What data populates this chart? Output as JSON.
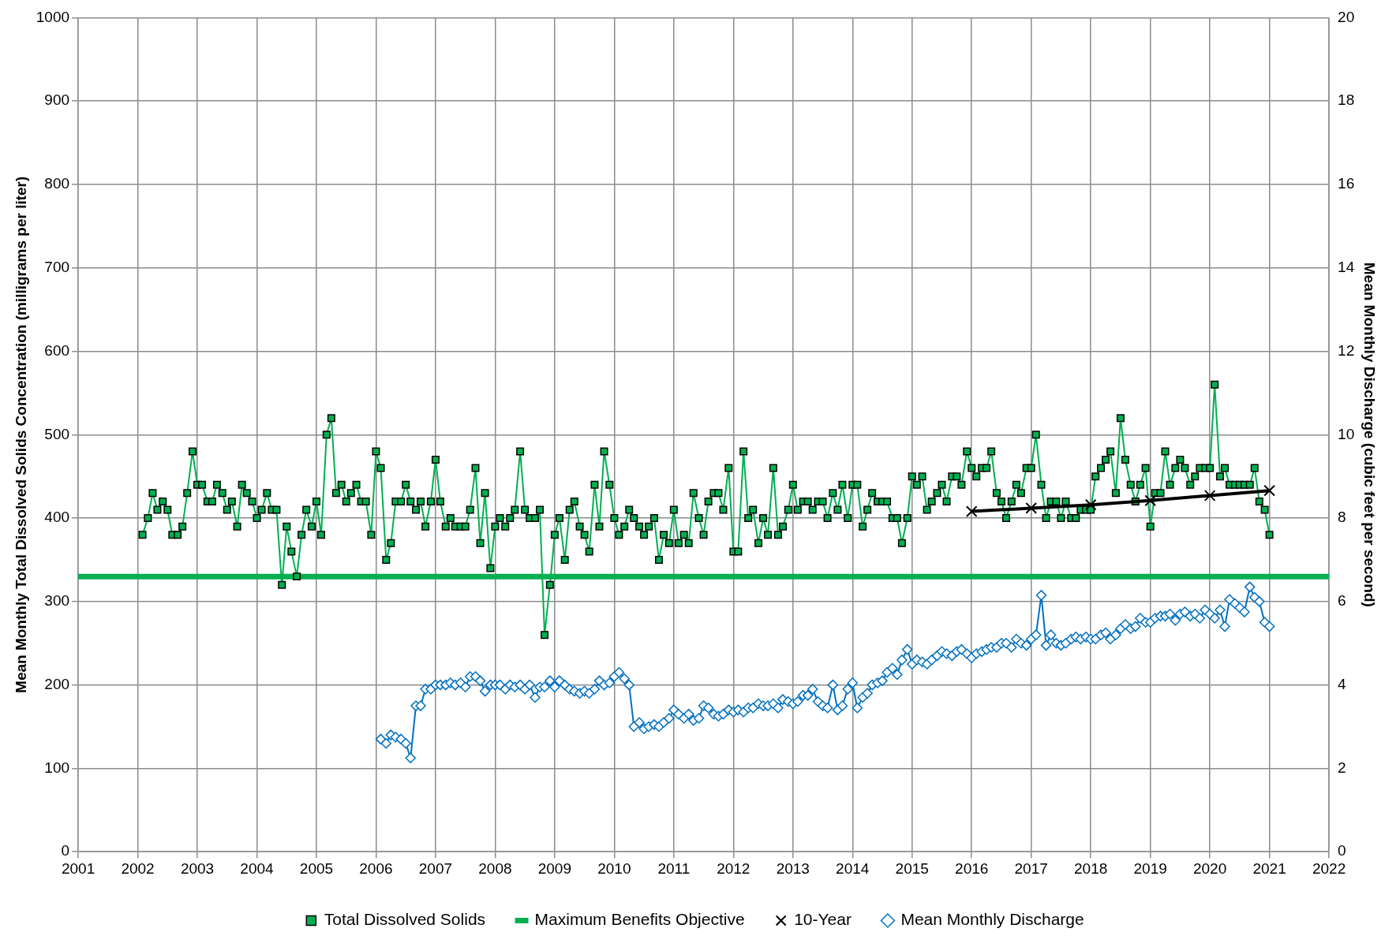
{
  "chart_data": {
    "type": "line",
    "xlabel": null,
    "ylabel": "Mean Monthly Total Dissolved Solids Concentration (milligrams per liter)",
    "y2label": "Mean Monthly Discharge (cubic feet per second)",
    "xlim": [
      2001,
      2022
    ],
    "xticks": [
      2001,
      2002,
      2003,
      2004,
      2005,
      2006,
      2007,
      2008,
      2009,
      2010,
      2011,
      2012,
      2013,
      2014,
      2015,
      2016,
      2017,
      2018,
      2019,
      2020,
      2021,
      2022
    ],
    "ylim": [
      0,
      1000
    ],
    "yticks": [
      0,
      100,
      200,
      300,
      400,
      500,
      600,
      700,
      800,
      900,
      1000
    ],
    "y2lim": [
      0,
      20
    ],
    "y2ticks": [
      0,
      2,
      4,
      6,
      8,
      10,
      12,
      14,
      16,
      18,
      20
    ],
    "grid": true,
    "legend": "bottom",
    "ref_lines": [
      {
        "axis": "y",
        "value": 330,
        "label": "Maximum Benefits Objective",
        "color": "#00b050",
        "line_style": "solid"
      }
    ],
    "series": [
      {
        "name": "Total Dissolved Solids",
        "color": "#00b050",
        "marker": "square",
        "line_style": "solid",
        "x": [
          2002.08,
          2002.17,
          2002.25,
          2002.33,
          2002.42,
          2002.5,
          2002.58,
          2002.67,
          2002.75,
          2002.83,
          2002.92,
          2003,
          2003.08,
          2003.17,
          2003.25,
          2003.33,
          2003.42,
          2003.5,
          2003.58,
          2003.67,
          2003.75,
          2003.83,
          2003.92,
          2004,
          2004.08,
          2004.17,
          2004.25,
          2004.33,
          2004.42,
          2004.5,
          2004.58,
          2004.67,
          2004.75,
          2004.83,
          2004.92,
          2005,
          2005.08,
          2005.17,
          2005.25,
          2005.33,
          2005.42,
          2005.5,
          2005.58,
          2005.67,
          2005.75,
          2005.83,
          2005.92,
          2006,
          2006.08,
          2006.17,
          2006.25,
          2006.33,
          2006.42,
          2006.5,
          2006.58,
          2006.67,
          2006.75,
          2006.83,
          2006.92,
          2007,
          2007.08,
          2007.17,
          2007.25,
          2007.33,
          2007.42,
          2007.5,
          2007.58,
          2007.67,
          2007.75,
          2007.83,
          2007.92,
          2008,
          2008.08,
          2008.17,
          2008.25,
          2008.33,
          2008.42,
          2008.5,
          2008.58,
          2008.67,
          2008.75,
          2008.83,
          2008.92,
          2009,
          2009.08,
          2009.17,
          2009.25,
          2009.33,
          2009.42,
          2009.5,
          2009.58,
          2009.67,
          2009.75,
          2009.83,
          2009.92,
          2010,
          2010.08,
          2010.17,
          2010.25,
          2010.33,
          2010.42,
          2010.5,
          2010.58,
          2010.67,
          2010.75,
          2010.83,
          2010.92,
          2011,
          2011.08,
          2011.17,
          2011.25,
          2011.33,
          2011.42,
          2011.5,
          2011.58,
          2011.67,
          2011.75,
          2011.83,
          2011.92,
          2012,
          2012.08,
          2012.17,
          2012.25,
          2012.33,
          2012.42,
          2012.5,
          2012.58,
          2012.67,
          2012.75,
          2012.83,
          2012.92,
          2013,
          2013.08,
          2013.17,
          2013.25,
          2013.33,
          2013.42,
          2013.5,
          2013.58,
          2013.67,
          2013.75,
          2013.83,
          2013.92,
          2014,
          2014.08,
          2014.17,
          2014.25,
          2014.33,
          2014.42,
          2014.5,
          2014.58,
          2014.67,
          2014.75,
          2014.83,
          2014.92,
          2015,
          2015.08,
          2015.17,
          2015.25,
          2015.33,
          2015.42,
          2015.5,
          2015.58,
          2015.67,
          2015.75,
          2015.83,
          2015.92,
          2016,
          2016.08,
          2016.17,
          2016.25,
          2016.33,
          2016.42,
          2016.5,
          2016.58,
          2016.67,
          2016.75,
          2016.83,
          2016.92,
          2017,
          2017.08,
          2017.17,
          2017.25,
          2017.33,
          2017.42,
          2017.5,
          2017.58,
          2017.67,
          2017.75,
          2017.83,
          2017.92,
          2018,
          2018.08,
          2018.17,
          2018.25,
          2018.33,
          2018.42,
          2018.5,
          2018.58,
          2018.67,
          2018.75,
          2018.83,
          2018.92,
          2019,
          2019.08,
          2019.17,
          2019.25,
          2019.33,
          2019.42,
          2019.5,
          2019.58,
          2019.67,
          2019.75,
          2019.83,
          2019.92,
          2020,
          2020.08,
          2020.17,
          2020.25,
          2020.33,
          2020.42,
          2020.5,
          2020.58,
          2020.67,
          2020.75,
          2020.83,
          2020.92,
          2021
        ],
        "values": [
          380,
          400,
          430,
          410,
          420,
          410,
          380,
          380,
          390,
          430,
          480,
          440,
          440,
          420,
          420,
          440,
          430,
          410,
          420,
          390,
          440,
          430,
          420,
          400,
          410,
          430,
          410,
          410,
          320,
          390,
          360,
          330,
          380,
          410,
          390,
          420,
          380,
          500,
          520,
          430,
          440,
          420,
          430,
          440,
          420,
          420,
          380,
          480,
          460,
          350,
          370,
          420,
          420,
          440,
          420,
          410,
          420,
          390,
          420,
          470,
          420,
          390,
          400,
          390,
          390,
          390,
          410,
          460,
          370,
          430,
          340,
          390,
          400,
          390,
          400,
          410,
          480,
          410,
          400,
          400,
          410,
          260,
          320,
          380,
          400,
          350,
          410,
          420,
          390,
          380,
          360,
          440,
          390,
          480,
          440,
          400,
          380,
          390,
          410,
          400,
          390,
          380,
          390,
          400,
          350,
          380,
          370,
          410,
          370,
          380,
          370,
          430,
          400,
          380,
          420,
          430,
          430,
          410,
          460,
          360,
          360,
          480,
          400,
          410,
          370,
          400,
          380,
          460,
          380,
          390,
          410,
          440,
          410,
          420,
          420,
          410,
          420,
          420,
          400,
          430,
          410,
          440,
          400,
          440,
          440,
          390,
          410,
          430,
          420,
          420,
          420,
          400,
          400,
          370,
          400,
          450,
          440,
          450,
          410,
          420,
          430,
          440,
          420,
          450,
          450,
          440,
          480,
          460,
          450,
          460,
          460,
          480,
          430,
          420,
          400,
          420,
          440,
          430,
          460,
          460,
          500,
          440,
          400,
          420,
          420,
          400,
          420,
          400,
          400,
          410,
          410,
          410,
          450,
          460,
          470,
          480,
          430,
          520,
          470,
          440,
          420,
          440,
          460,
          390,
          430,
          430,
          480,
          440,
          460,
          470,
          460,
          440,
          450,
          460,
          460,
          460,
          560,
          450,
          460,
          440,
          440,
          440,
          440,
          440,
          460,
          420,
          410,
          380
        ]
      },
      {
        "name": "10-Year",
        "color": "#000000",
        "marker": "cross",
        "line_style": "solid",
        "x": [
          2016,
          2017,
          2018,
          2019,
          2020,
          2021
        ],
        "values": [
          408,
          412,
          416,
          421,
          427,
          433
        ]
      },
      {
        "name": "Mean Monthly Discharge",
        "axis": "y2",
        "color": "#0070c0",
        "marker": "diamond",
        "line_style": "solid",
        "x": [
          2006.08,
          2006.17,
          2006.25,
          2006.33,
          2006.42,
          2006.5,
          2006.58,
          2006.67,
          2006.75,
          2006.83,
          2006.92,
          2007,
          2007.08,
          2007.17,
          2007.25,
          2007.33,
          2007.42,
          2007.5,
          2007.58,
          2007.67,
          2007.75,
          2007.83,
          2007.92,
          2008,
          2008.08,
          2008.17,
          2008.25,
          2008.33,
          2008.42,
          2008.5,
          2008.58,
          2008.67,
          2008.75,
          2008.83,
          2008.92,
          2009,
          2009.08,
          2009.17,
          2009.25,
          2009.33,
          2009.42,
          2009.5,
          2009.58,
          2009.67,
          2009.75,
          2009.83,
          2009.92,
          2010,
          2010.08,
          2010.17,
          2010.25,
          2010.33,
          2010.42,
          2010.5,
          2010.58,
          2010.67,
          2010.75,
          2010.83,
          2010.92,
          2011,
          2011.08,
          2011.17,
          2011.25,
          2011.33,
          2011.42,
          2011.5,
          2011.58,
          2011.67,
          2011.75,
          2011.83,
          2011.92,
          2012,
          2012.08,
          2012.17,
          2012.25,
          2012.33,
          2012.42,
          2012.5,
          2012.58,
          2012.67,
          2012.75,
          2012.83,
          2012.92,
          2013,
          2013.08,
          2013.17,
          2013.25,
          2013.33,
          2013.42,
          2013.5,
          2013.58,
          2013.67,
          2013.75,
          2013.83,
          2013.92,
          2014,
          2014.08,
          2014.17,
          2014.25,
          2014.33,
          2014.42,
          2014.5,
          2014.58,
          2014.67,
          2014.75,
          2014.83,
          2014.92,
          2015,
          2015.08,
          2015.17,
          2015.25,
          2015.33,
          2015.42,
          2015.5,
          2015.58,
          2015.67,
          2015.75,
          2015.83,
          2015.92,
          2016,
          2016.08,
          2016.17,
          2016.25,
          2016.33,
          2016.42,
          2016.5,
          2016.58,
          2016.67,
          2016.75,
          2016.83,
          2016.92,
          2017,
          2017.08,
          2017.17,
          2017.25,
          2017.33,
          2017.42,
          2017.5,
          2017.58,
          2017.67,
          2017.75,
          2017.83,
          2017.92,
          2018,
          2018.08,
          2018.17,
          2018.25,
          2018.33,
          2018.42,
          2018.5,
          2018.58,
          2018.67,
          2018.75,
          2018.83,
          2018.92,
          2019,
          2019.08,
          2019.17,
          2019.25,
          2019.33,
          2019.42,
          2019.5,
          2019.58,
          2019.67,
          2019.75,
          2019.83,
          2019.92,
          2020,
          2020.08,
          2020.17,
          2020.25,
          2020.33,
          2020.42,
          2020.5,
          2020.58,
          2020.67,
          2020.75,
          2020.83,
          2020.92,
          2021
        ],
        "values": [
          2.7,
          2.6,
          2.8,
          2.75,
          2.7,
          2.6,
          2.25,
          3.5,
          3.5,
          3.9,
          3.9,
          4.0,
          4.0,
          4.0,
          4.05,
          4.0,
          4.05,
          3.95,
          4.2,
          4.2,
          4.1,
          3.85,
          4.0,
          4.0,
          4.0,
          3.9,
          4.0,
          3.95,
          4.0,
          3.9,
          4.0,
          3.7,
          3.95,
          3.95,
          4.1,
          3.95,
          4.1,
          4.0,
          3.9,
          3.85,
          3.8,
          3.85,
          3.8,
          3.9,
          4.1,
          4.0,
          4.05,
          4.2,
          4.3,
          4.15,
          4.0,
          3.0,
          3.1,
          2.95,
          3.0,
          3.05,
          3.0,
          3.1,
          3.2,
          3.4,
          3.3,
          3.2,
          3.3,
          3.15,
          3.2,
          3.5,
          3.45,
          3.3,
          3.25,
          3.3,
          3.4,
          3.35,
          3.4,
          3.35,
          3.45,
          3.45,
          3.55,
          3.5,
          3.5,
          3.55,
          3.45,
          3.65,
          3.6,
          3.55,
          3.6,
          3.75,
          3.75,
          3.9,
          3.6,
          3.5,
          3.45,
          4.0,
          3.4,
          3.5,
          3.9,
          4.05,
          3.45,
          3.7,
          3.8,
          4.0,
          4.05,
          4.1,
          4.3,
          4.4,
          4.25,
          4.6,
          4.85,
          4.5,
          4.6,
          4.55,
          4.5,
          4.6,
          4.7,
          4.8,
          4.75,
          4.7,
          4.8,
          4.85,
          4.75,
          4.65,
          4.75,
          4.8,
          4.85,
          4.9,
          4.9,
          5.0,
          5.0,
          4.9,
          5.1,
          5.0,
          4.95,
          5.1,
          5.2,
          6.15,
          4.95,
          5.2,
          5.0,
          4.95,
          5.0,
          5.1,
          5.15,
          5.1,
          5.15,
          5.1,
          5.1,
          5.2,
          5.25,
          5.1,
          5.2,
          5.35,
          5.45,
          5.35,
          5.4,
          5.6,
          5.5,
          5.5,
          5.6,
          5.65,
          5.65,
          5.7,
          5.55,
          5.7,
          5.75,
          5.65,
          5.7,
          5.6,
          5.8,
          5.7,
          5.6,
          5.8,
          5.4,
          6.05,
          5.95,
          5.85,
          5.75,
          6.35,
          6.1,
          6.0,
          5.5,
          5.4
        ]
      }
    ]
  }
}
